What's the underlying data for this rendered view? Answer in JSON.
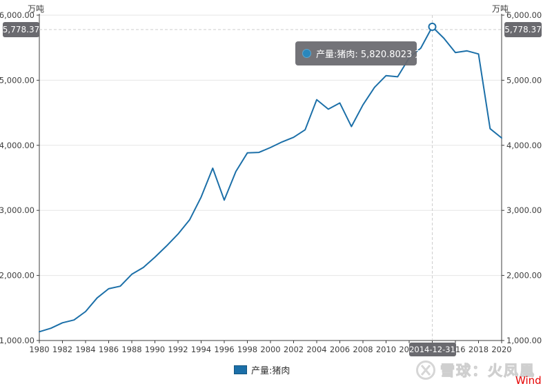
{
  "units": {
    "left": "万吨",
    "right": "万吨"
  },
  "chart_data": {
    "type": "line",
    "title": "",
    "xlabel": "",
    "ylabel": "万吨",
    "xlim": [
      1980,
      2020
    ],
    "ylim": [
      1000,
      6000
    ],
    "grid": "horizontal",
    "legend_position": "bottom",
    "x_ticks": [
      1980,
      1982,
      1984,
      1986,
      1988,
      1990,
      1992,
      1994,
      1996,
      1998,
      2000,
      2002,
      2004,
      2006,
      2008,
      2010,
      2012,
      2014,
      2016,
      2018,
      2020
    ],
    "y_ticks": [
      1000,
      2000,
      3000,
      4000,
      5000,
      6000
    ],
    "y_tick_labels": [
      "1,000.00",
      "2,000.00",
      "3,000.00",
      "4,000.00",
      "5,000.00",
      "6,000.00"
    ],
    "series": [
      {
        "name": "产量:猪肉",
        "color": "#1b6fa8",
        "x": [
          1980,
          1981,
          1982,
          1983,
          1984,
          1985,
          1986,
          1987,
          1988,
          1989,
          1990,
          1991,
          1992,
          1993,
          1994,
          1995,
          1996,
          1997,
          1998,
          1999,
          2000,
          2001,
          2002,
          2003,
          2004,
          2005,
          2006,
          2007,
          2008,
          2009,
          2010,
          2011,
          2012,
          2013,
          2014,
          2015,
          2016,
          2017,
          2018,
          2019,
          2020
        ],
        "values": [
          1134.1,
          1188.4,
          1271.8,
          1316.1,
          1444.5,
          1654.7,
          1796.0,
          1834.8,
          2017.6,
          2122.9,
          2281.1,
          2452.3,
          2635.3,
          2854.4,
          3204.8,
          3648.4,
          3158.0,
          3596.3,
          3883.7,
          3890.6,
          3966.0,
          4051.6,
          4123.1,
          4238.6,
          4701.6,
          4555.3,
          4650.5,
          4287.8,
          4620.5,
          4890.8,
          5071.2,
          5053.1,
          5342.7,
          5493.0,
          5820.8,
          5645.4,
          5425.5,
          5451.8,
          5403.7,
          4255.3,
          4113.3
        ]
      }
    ]
  },
  "crosshair": {
    "y_value": 5778.37,
    "y_label": "5,778.37",
    "x_value": 2014,
    "x_label": "2014-12-31",
    "marker_value": 5820.8023
  },
  "tooltip": {
    "text": "产量:猪肉: 5,820.8023 万吨"
  },
  "legend": {
    "label": "产量:猪肉"
  },
  "watermark": {
    "brand": "雪球：火凤凰",
    "provider": "Wind"
  },
  "colors": {
    "line": "#1b6fa8",
    "axis": "#3c3c3c",
    "grid": "#e6e6e6",
    "tick_text": "#3d3d3d",
    "crosshair": "#cdcdcd",
    "badge_bg": "#6a6a6f",
    "marker_stroke": "#1b6fa8",
    "wind_red": "#e60000"
  }
}
